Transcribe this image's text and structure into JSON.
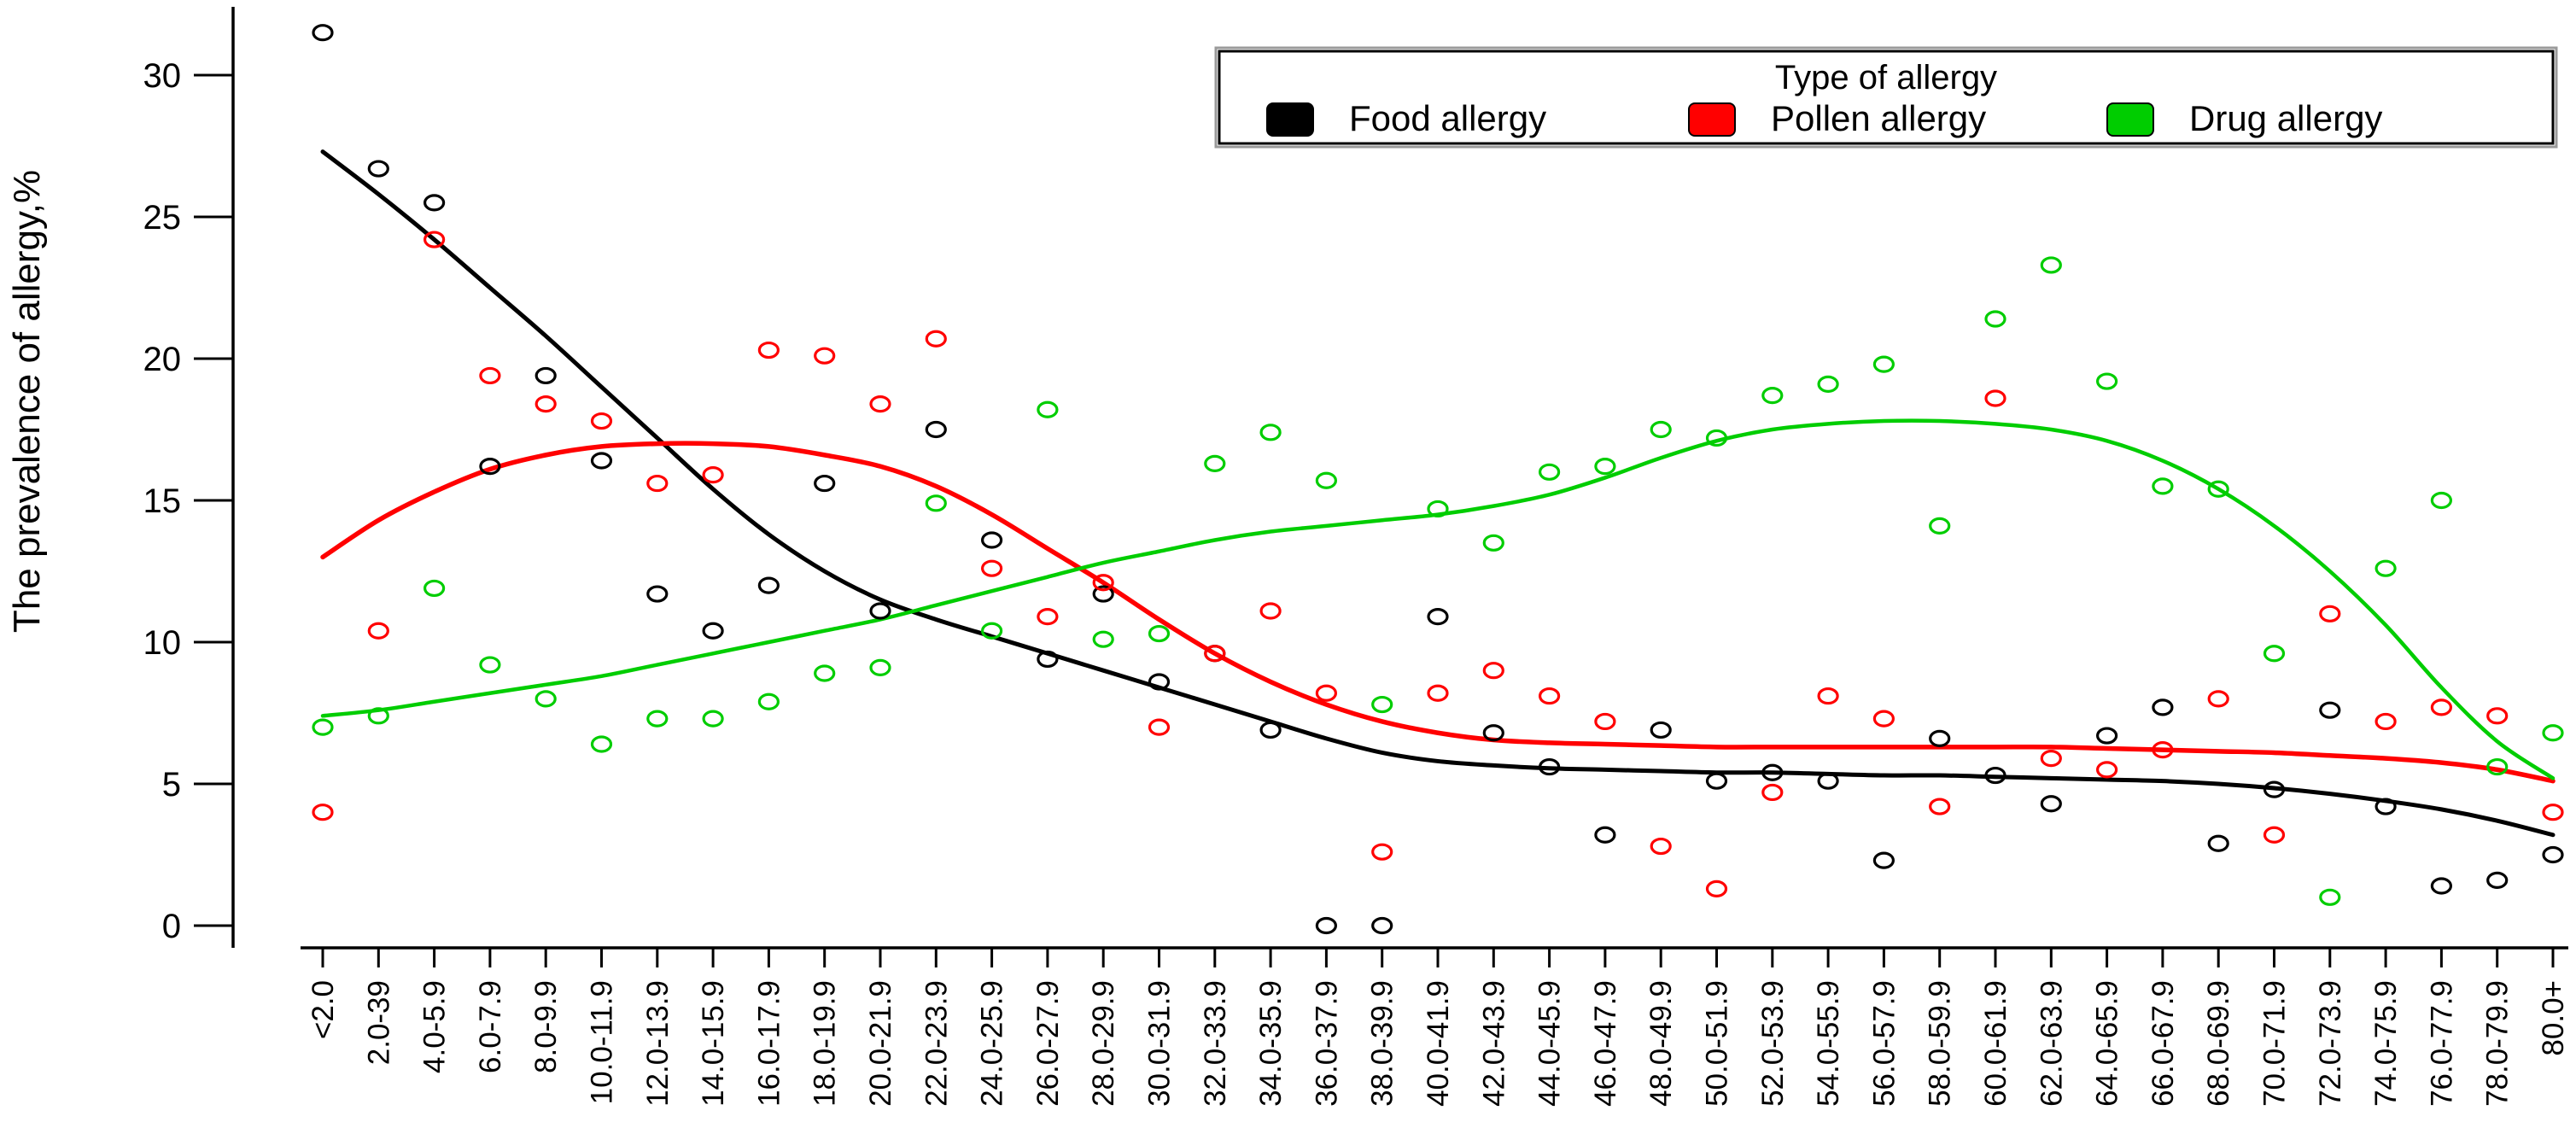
{
  "chart_data": {
    "type": "scatter",
    "title": "",
    "ylabel": "The prevalence of allergy,%",
    "xlabel": "",
    "ylim": [
      0,
      32
    ],
    "yticks": [
      0,
      5,
      10,
      15,
      20,
      25,
      30
    ],
    "grid": false,
    "legend_position": "top-right",
    "legend": {
      "title": "Type of allergy",
      "items": [
        {
          "label": "Food allergy",
          "color": "#000000"
        },
        {
          "label": "Pollen allergy",
          "color": "#ff0000"
        },
        {
          "label": "Drug allergy",
          "color": "#00cd00"
        }
      ]
    },
    "categories": [
      "<2.0",
      "2.0-39",
      "4.0-5.9",
      "6.0-7.9",
      "8.0-9.9",
      "10.0-11.9",
      "12.0-13.9",
      "14.0-15.9",
      "16.0-17.9",
      "18.0-19.9",
      "20.0-21.9",
      "22.0-23.9",
      "24.0-25.9",
      "26.0-27.9",
      "28.0-29.9",
      "30.0-31.9",
      "32.0-33.9",
      "34.0-35.9",
      "36.0-37.9",
      "38.0-39.9",
      "40.0-41.9",
      "42.0-43.9",
      "44.0-45.9",
      "46.0-47.9",
      "48.0-49.9",
      "50.0-51.9",
      "52.0-53.9",
      "54.0-55.9",
      "56.0-57.9",
      "58.0-59.9",
      "60.0-61.9",
      "62.0-63.9",
      "64.0-65.9",
      "66.0-67.9",
      "68.0-69.9",
      "70.0-71.9",
      "72.0-73.9",
      "74.0-75.9",
      "76.0-77.9",
      "78.0-79.9",
      "80.0+"
    ],
    "series": [
      {
        "name": "Food allergy",
        "color": "#000000",
        "points": [
          31.5,
          26.7,
          25.5,
          16.2,
          19.4,
          16.4,
          11.7,
          10.4,
          12.0,
          15.6,
          11.1,
          17.5,
          13.6,
          9.4,
          11.7,
          8.6,
          9.6,
          6.9,
          0,
          0,
          10.9,
          6.8,
          5.6,
          3.2,
          6.9,
          5.1,
          5.4,
          5.1,
          2.3,
          6.6,
          5.3,
          4.3,
          6.7,
          7.7,
          2.9,
          4.8,
          7.6,
          4.2,
          1.4,
          1.6,
          2.5
        ],
        "trend": [
          27.3,
          25.8,
          24.2,
          22.5,
          20.8,
          19.0,
          17.2,
          15.4,
          13.8,
          12.5,
          11.5,
          10.8,
          10.2,
          9.6,
          9.0,
          8.4,
          7.8,
          7.2,
          6.6,
          6.1,
          5.8,
          5.65,
          5.55,
          5.5,
          5.45,
          5.4,
          5.4,
          5.35,
          5.3,
          5.3,
          5.25,
          5.2,
          5.15,
          5.1,
          5.0,
          4.85,
          4.65,
          4.4,
          4.1,
          3.7,
          3.2
        ]
      },
      {
        "name": "Pollen allergy",
        "color": "#ff0000",
        "points": [
          4.0,
          10.4,
          24.2,
          19.4,
          18.4,
          17.8,
          15.6,
          15.9,
          20.3,
          20.1,
          18.4,
          20.7,
          12.6,
          10.9,
          12.1,
          7.0,
          9.6,
          11.1,
          8.2,
          2.6,
          8.2,
          9.0,
          8.1,
          7.2,
          2.8,
          1.3,
          4.7,
          8.1,
          7.3,
          4.2,
          18.6,
          5.9,
          5.5,
          6.2,
          8.0,
          3.2,
          11.0,
          7.2,
          7.7,
          7.4,
          4.0
        ],
        "trend": [
          13.0,
          14.3,
          15.3,
          16.1,
          16.6,
          16.9,
          17.0,
          17.0,
          16.9,
          16.6,
          16.2,
          15.5,
          14.5,
          13.3,
          12.1,
          10.8,
          9.6,
          8.6,
          7.8,
          7.2,
          6.8,
          6.55,
          6.45,
          6.4,
          6.35,
          6.3,
          6.3,
          6.3,
          6.3,
          6.3,
          6.3,
          6.3,
          6.25,
          6.2,
          6.15,
          6.1,
          6.0,
          5.9,
          5.75,
          5.5,
          5.1
        ]
      },
      {
        "name": "Drug allergy",
        "color": "#00cd00",
        "points": [
          7.0,
          7.4,
          11.9,
          9.2,
          8.0,
          6.4,
          7.3,
          7.3,
          7.9,
          8.9,
          9.1,
          14.9,
          10.4,
          18.2,
          10.1,
          10.3,
          16.3,
          17.4,
          15.7,
          7.8,
          14.7,
          13.5,
          16.0,
          16.2,
          17.5,
          17.2,
          18.7,
          19.1,
          19.8,
          14.1,
          21.4,
          23.3,
          19.2,
          15.5,
          15.4,
          9.6,
          1.0,
          12.6,
          15.0,
          5.6,
          6.8
        ],
        "trend": [
          7.4,
          7.6,
          7.9,
          8.2,
          8.5,
          8.8,
          9.2,
          9.6,
          10.0,
          10.4,
          10.8,
          11.3,
          11.8,
          12.3,
          12.8,
          13.2,
          13.6,
          13.9,
          14.1,
          14.3,
          14.5,
          14.8,
          15.2,
          15.8,
          16.5,
          17.1,
          17.5,
          17.7,
          17.8,
          17.8,
          17.7,
          17.5,
          17.1,
          16.4,
          15.4,
          14.1,
          12.5,
          10.6,
          8.4,
          6.5,
          5.2
        ]
      }
    ]
  }
}
